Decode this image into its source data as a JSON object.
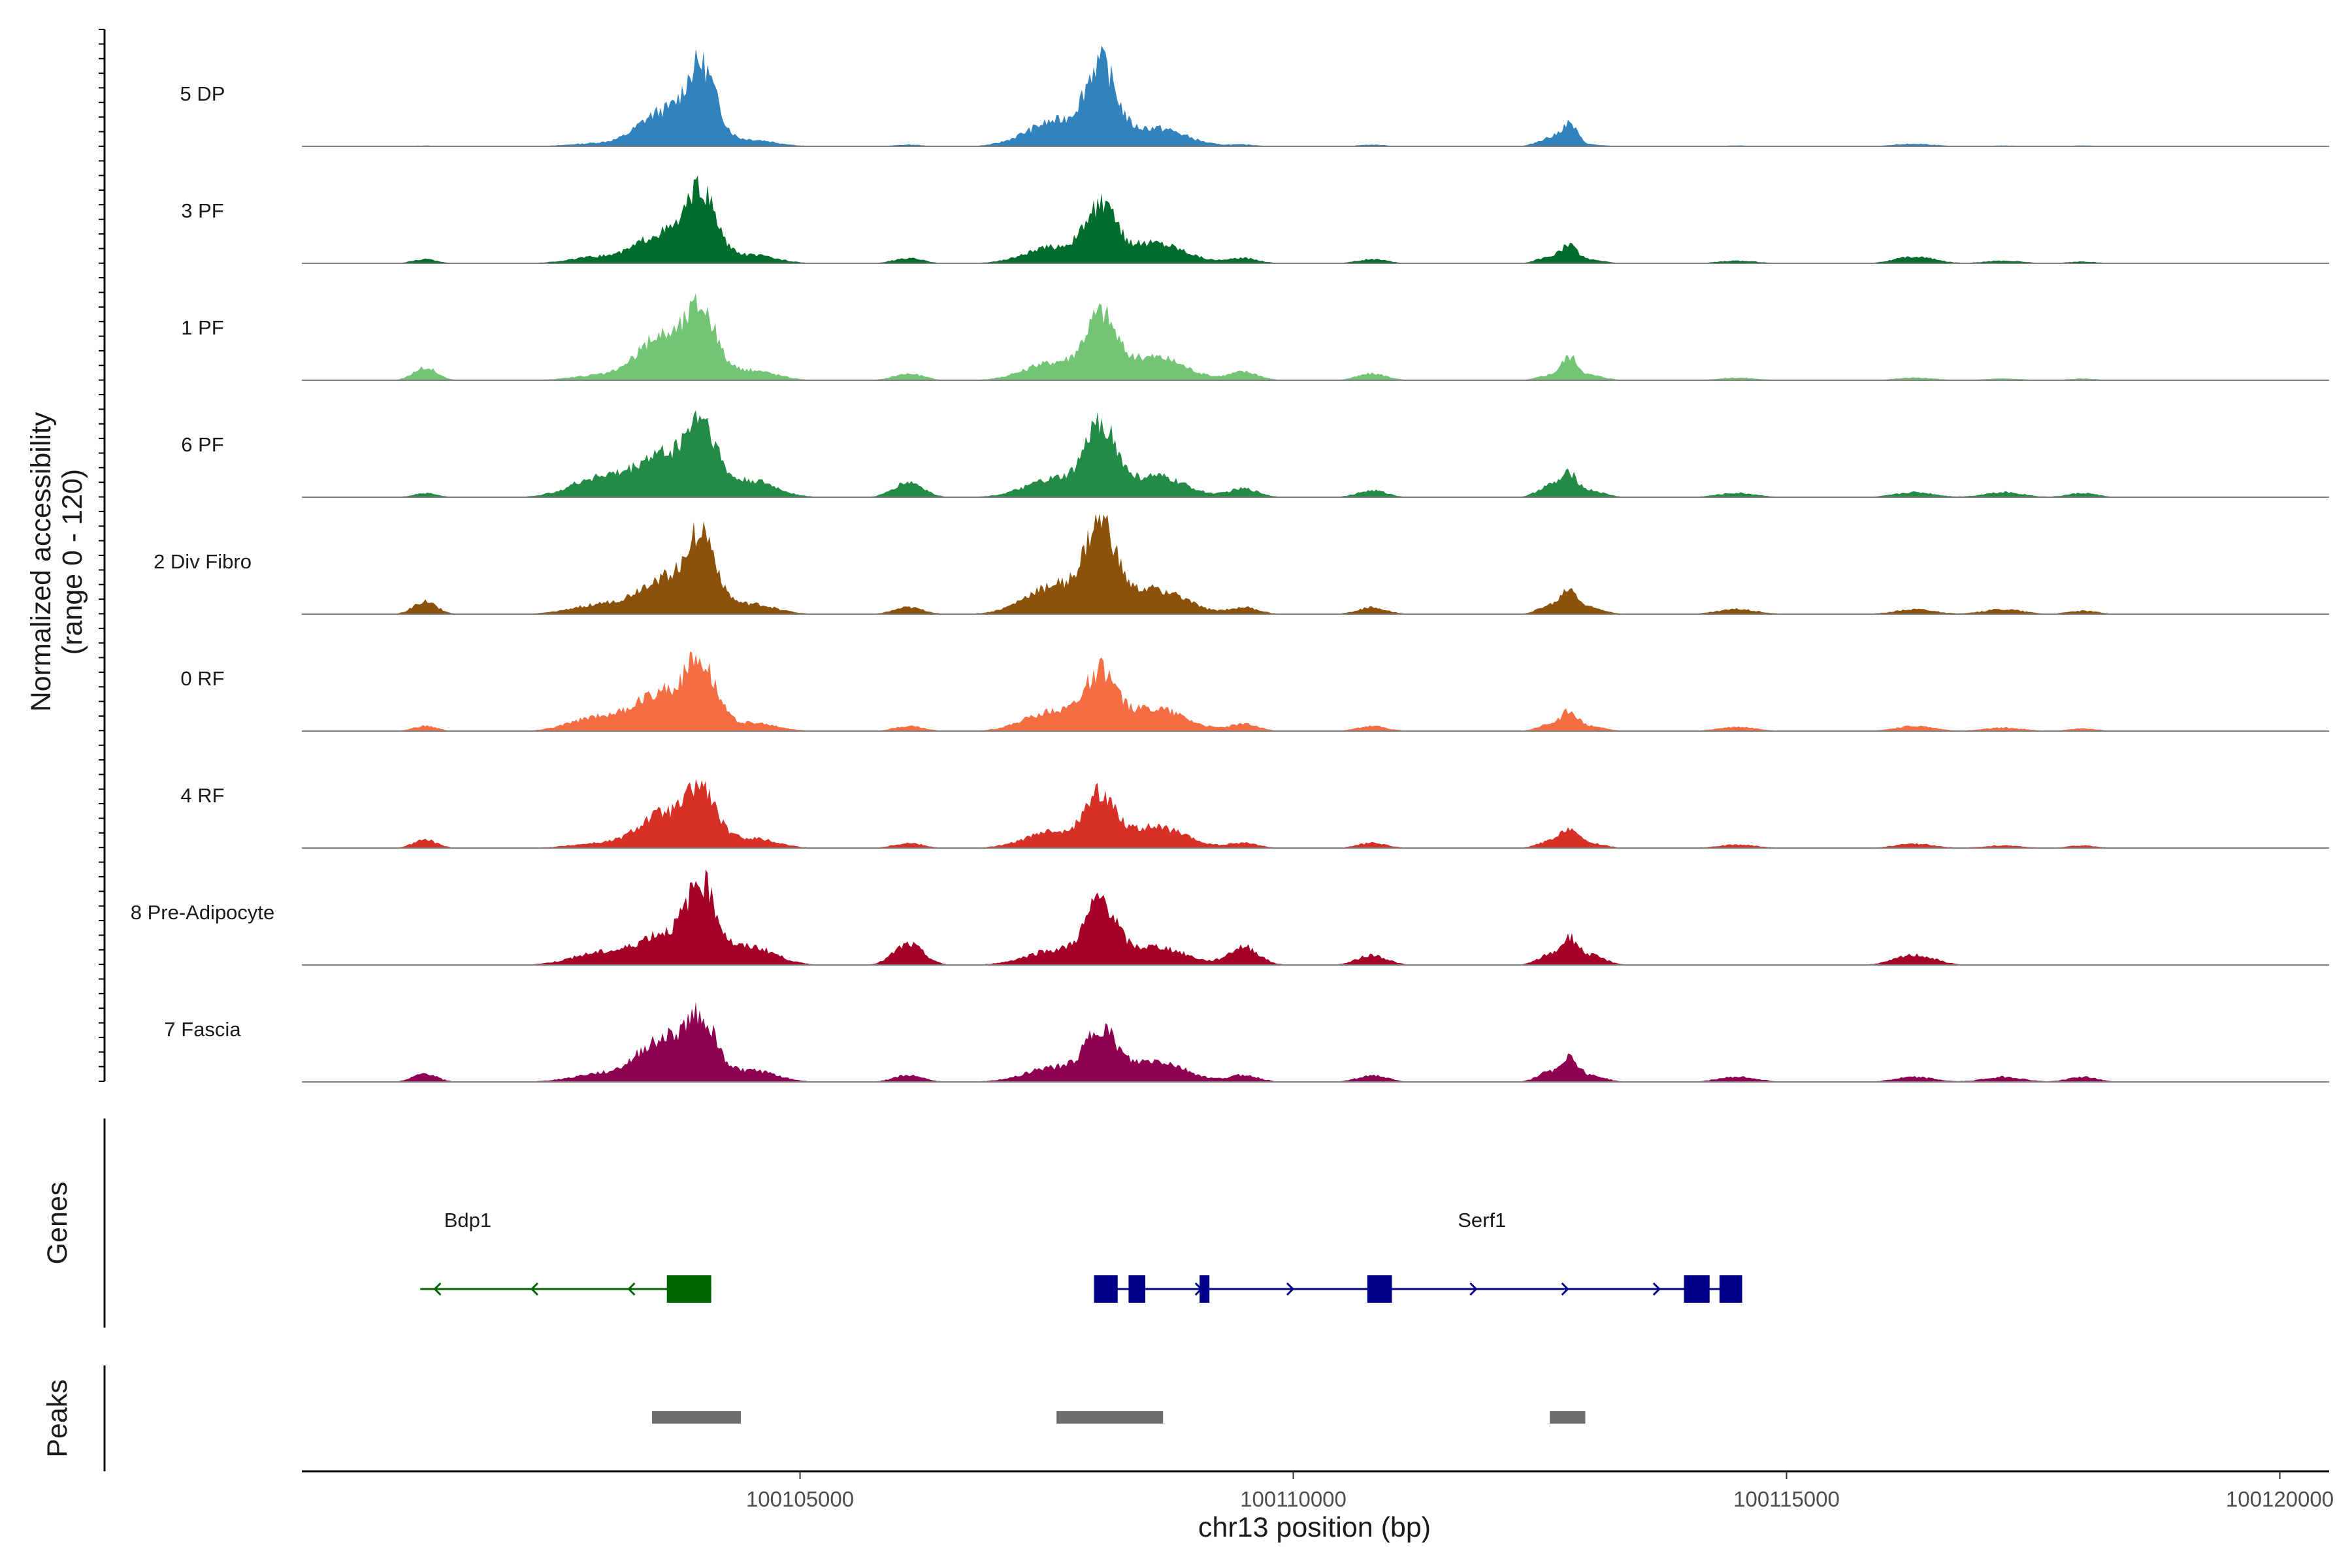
{
  "chart_data": {
    "type": "area",
    "title": "",
    "region": "chr13",
    "xlabel": "chr13 position (bp)",
    "ylabel": "Normalized accessibility",
    "ylabel_range": "(range 0 - 120)",
    "ylim": [
      0,
      120
    ],
    "xlim": [
      100099950,
      100120500
    ],
    "x_ticks": [
      100105000,
      100110000,
      100115000,
      100120000
    ],
    "x_tick_labels": [
      "100105000",
      "100110000",
      "100115000",
      "100120000"
    ],
    "peak_profile": {
      "positions": [
        100101200,
        100103000,
        100103600,
        100104000,
        100104500,
        100106100,
        100107600,
        100108050,
        100108600,
        100109500,
        100110800,
        100112600,
        100112800,
        100113000,
        100114500,
        100116300,
        100117200,
        100118000
      ],
      "widths": [
        120,
        300,
        230,
        150,
        250,
        150,
        300,
        150,
        300,
        150,
        150,
        120,
        80,
        150,
        200,
        200,
        200,
        150
      ]
    },
    "series": [
      {
        "name": "5 DP",
        "color": "#3182BD",
        "values": [
          1,
          4,
          40,
          90,
          8,
          2,
          30,
          88,
          22,
          2,
          2,
          10,
          24,
          2,
          1,
          3,
          1,
          1
        ]
      },
      {
        "name": "3 PF",
        "color": "#006D2C",
        "values": [
          5,
          8,
          35,
          80,
          10,
          6,
          20,
          60,
          25,
          6,
          5,
          8,
          18,
          4,
          3,
          8,
          3,
          2
        ]
      },
      {
        "name": "1 PF",
        "color": "#74C476",
        "values": [
          15,
          6,
          52,
          78,
          12,
          8,
          22,
          70,
          28,
          10,
          8,
          6,
          25,
          6,
          3,
          3,
          2,
          2
        ]
      },
      {
        "name": "6 PF",
        "color": "#238B45",
        "values": [
          5,
          25,
          48,
          85,
          20,
          18,
          22,
          80,
          25,
          10,
          8,
          14,
          22,
          8,
          5,
          6,
          6,
          5
        ]
      },
      {
        "name": "2 Div Fibro",
        "color": "#8C510A",
        "values": [
          15,
          12,
          40,
          90,
          12,
          8,
          35,
          95,
          30,
          8,
          8,
          10,
          25,
          8,
          6,
          6,
          6,
          4
        ]
      },
      {
        "name": "0 RF",
        "color": "#F46D43",
        "values": [
          6,
          18,
          45,
          78,
          10,
          6,
          25,
          60,
          28,
          8,
          6,
          8,
          20,
          6,
          5,
          6,
          4,
          3
        ]
      },
      {
        "name": "4 RF",
        "color": "#D73027",
        "values": [
          10,
          6,
          40,
          65,
          12,
          6,
          20,
          55,
          25,
          6,
          6,
          8,
          20,
          6,
          4,
          5,
          3,
          3
        ]
      },
      {
        "name": "8 Pre-Adipocyte",
        "color": "#A50026",
        "values": [
          0,
          15,
          35,
          90,
          22,
          25,
          18,
          70,
          22,
          22,
          12,
          12,
          25,
          12,
          0,
          12,
          0,
          0
        ]
      },
      {
        "name": "7 Fascia",
        "color": "#8E0152",
        "values": [
          10,
          10,
          50,
          70,
          14,
          8,
          18,
          55,
          25,
          8,
          8,
          12,
          25,
          8,
          6,
          6,
          6,
          6
        ]
      }
    ],
    "genes": [
      {
        "name": "Bdp1",
        "strand": "-",
        "color": "#006400",
        "start": 100101150,
        "end": 100104100,
        "exons": [
          [
            100103650,
            100104100
          ]
        ]
      },
      {
        "name": "Serf1",
        "strand": "+",
        "color": "#00008B",
        "start": 100108000,
        "end": 100114500,
        "exons": [
          [
            100107980,
            100108220
          ],
          [
            100108330,
            100108500
          ],
          [
            100109050,
            100109150
          ],
          [
            100110750,
            100111000
          ],
          [
            100113960,
            100114220
          ],
          [
            100114320,
            100114550
          ]
        ]
      }
    ],
    "peaks": [
      [
        100103500,
        100104400
      ],
      [
        100107600,
        100108680
      ],
      [
        100112600,
        100112960
      ]
    ],
    "genes_track_label": "Genes",
    "peaks_track_label": "Peaks",
    "colors": {
      "axis": "#000000",
      "baseline": "#7f7f7f",
      "peak": "#6e6e6e"
    }
  }
}
